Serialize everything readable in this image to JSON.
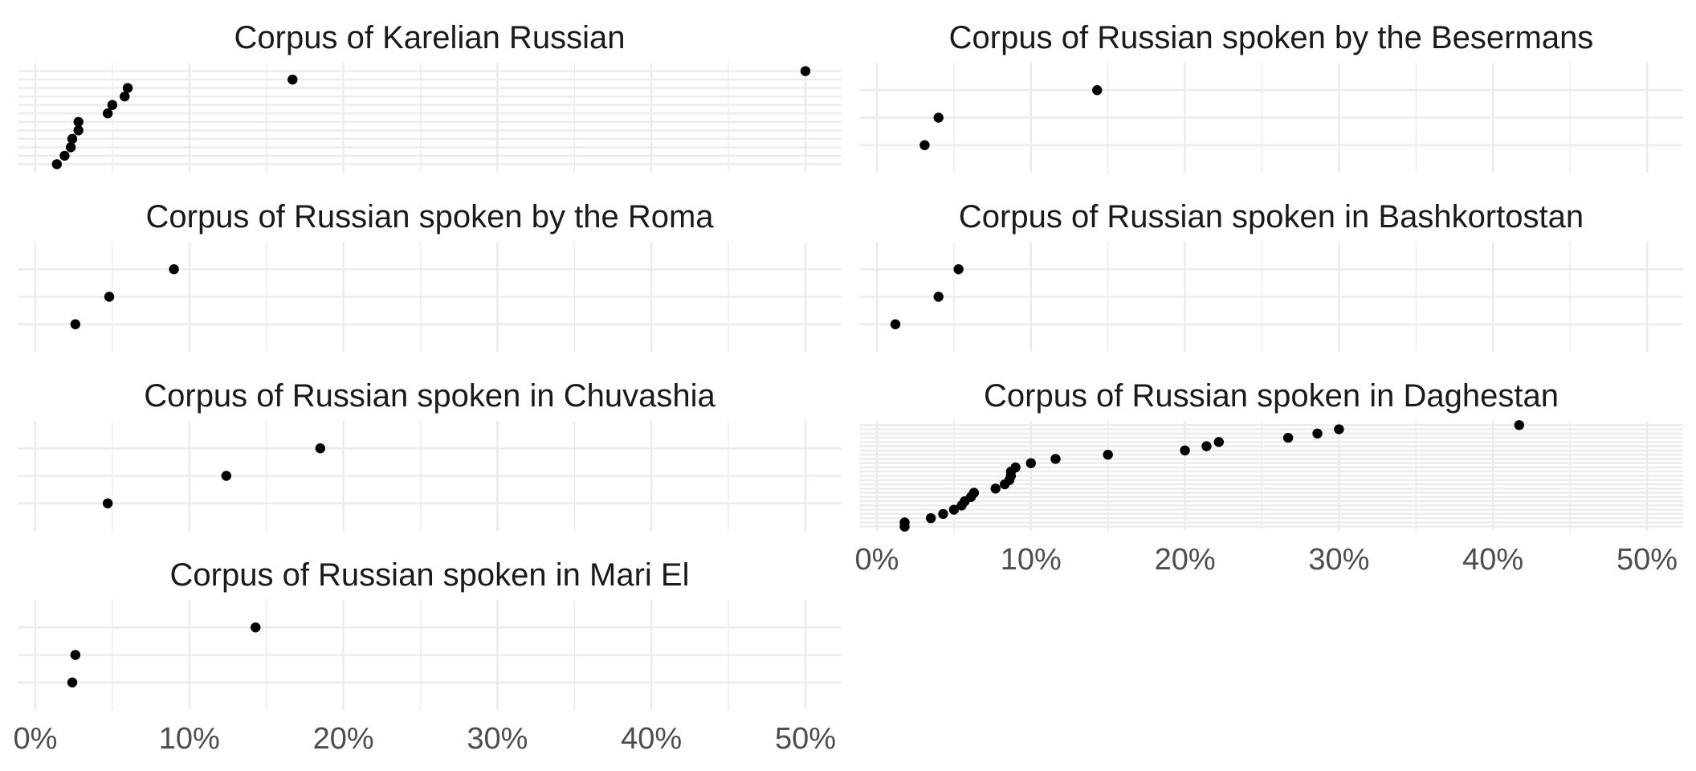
{
  "chart_data": [
    {
      "type": "scatter",
      "title": "Corpus of Karelian Russian",
      "xlim": [
        0,
        0.52
      ],
      "x_ticks": [
        0,
        0.1,
        0.2,
        0.3,
        0.4,
        0.5
      ],
      "x_tick_labels": [
        "0%",
        "10%",
        "20%",
        "30%",
        "40%",
        "50%"
      ],
      "x_tick_labels_shown": false,
      "grid": true,
      "values": [
        0.5,
        0.167,
        0.06,
        0.058,
        0.05,
        0.047,
        0.028,
        0.028,
        0.024,
        0.023,
        0.019,
        0.014
      ]
    },
    {
      "type": "scatter",
      "title": "Corpus of Russian spoken by the Besermans",
      "xlim": [
        0,
        0.52
      ],
      "x_ticks": [
        0,
        0.1,
        0.2,
        0.3,
        0.4,
        0.5
      ],
      "x_tick_labels": [
        "0%",
        "10%",
        "20%",
        "30%",
        "40%",
        "50%"
      ],
      "x_tick_labels_shown": false,
      "grid": true,
      "values": [
        0.143,
        0.04,
        0.031
      ]
    },
    {
      "type": "scatter",
      "title": "Corpus of Russian spoken by the Roma",
      "xlim": [
        0,
        0.52
      ],
      "x_ticks": [
        0,
        0.1,
        0.2,
        0.3,
        0.4,
        0.5
      ],
      "x_tick_labels": [
        "0%",
        "10%",
        "20%",
        "30%",
        "40%",
        "50%"
      ],
      "x_tick_labels_shown": false,
      "grid": true,
      "values": [
        0.09,
        0.048,
        0.026
      ]
    },
    {
      "type": "scatter",
      "title": "Corpus of Russian spoken in Bashkortostan",
      "xlim": [
        0,
        0.52
      ],
      "x_ticks": [
        0,
        0.1,
        0.2,
        0.3,
        0.4,
        0.5
      ],
      "x_tick_labels": [
        "0%",
        "10%",
        "20%",
        "30%",
        "40%",
        "50%"
      ],
      "x_tick_labels_shown": false,
      "grid": true,
      "values": [
        0.053,
        0.04,
        0.012
      ]
    },
    {
      "type": "scatter",
      "title": "Corpus of Russian spoken in Chuvashia",
      "xlim": [
        0,
        0.52
      ],
      "x_ticks": [
        0,
        0.1,
        0.2,
        0.3,
        0.4,
        0.5
      ],
      "x_tick_labels": [
        "0%",
        "10%",
        "20%",
        "30%",
        "40%",
        "50%"
      ],
      "x_tick_labels_shown": false,
      "grid": true,
      "values": [
        0.185,
        0.124,
        0.047
      ]
    },
    {
      "type": "scatter",
      "title": "Corpus of Russian spoken in Daghestan",
      "xlim": [
        0,
        0.52
      ],
      "x_ticks": [
        0,
        0.1,
        0.2,
        0.3,
        0.4,
        0.5
      ],
      "x_tick_labels": [
        "0%",
        "10%",
        "20%",
        "30%",
        "40%",
        "50%"
      ],
      "x_tick_labels_shown": true,
      "grid": true,
      "values": [
        0.417,
        0.3,
        0.286,
        0.267,
        0.222,
        0.214,
        0.2,
        0.15,
        0.116,
        0.1,
        0.09,
        0.087,
        0.087,
        0.086,
        0.083,
        0.077,
        0.063,
        0.061,
        0.057,
        0.055,
        0.05,
        0.043,
        0.035,
        0.018,
        0.018
      ]
    },
    {
      "type": "scatter",
      "title": "Corpus of Russian spoken in Mari El",
      "xlim": [
        0,
        0.52
      ],
      "x_ticks": [
        0,
        0.1,
        0.2,
        0.3,
        0.4,
        0.5
      ],
      "x_tick_labels": [
        "0%",
        "10%",
        "20%",
        "30%",
        "40%",
        "50%"
      ],
      "x_tick_labels_shown": true,
      "grid": true,
      "values": [
        0.143,
        0.026,
        0.024
      ]
    }
  ],
  "colors": {
    "point": "#000000",
    "grid": "#ebebeb",
    "title": "#1a1a1a",
    "tick_label": "#4d4d4d"
  }
}
